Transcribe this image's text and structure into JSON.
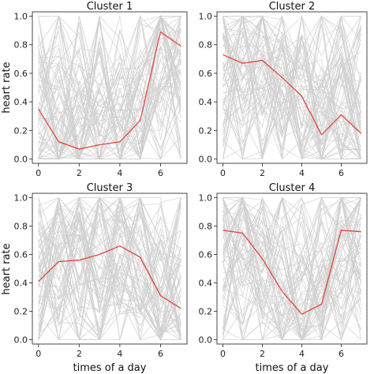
{
  "figure": {
    "ylabel": "heart rate",
    "xlabel": "times of a day"
  },
  "chart_data": [
    {
      "type": "line",
      "title": "Cluster 1",
      "x": [
        0,
        1,
        2,
        3,
        4,
        5,
        6,
        7
      ],
      "series": [
        {
          "values": [
            0.35,
            0.12,
            0.07,
            0.1,
            0.12,
            0.27,
            0.89,
            0.79
          ],
          "color": "#e0483b"
        }
      ],
      "xlim": [
        -0.3,
        7.3
      ],
      "ylim": [
        -0.03,
        1.03
      ],
      "xticks": [
        "0",
        "2",
        "4",
        "6"
      ],
      "yticks": [
        "0.0",
        "0.2",
        "0.4",
        "0.6",
        "0.8",
        "1.0"
      ],
      "xlabel": "",
      "ylabel": "heart rate",
      "grid": false,
      "background_color": "#d0d0d0"
    },
    {
      "type": "line",
      "title": "Cluster 2",
      "x": [
        0,
        1,
        2,
        3,
        4,
        5,
        6,
        7
      ],
      "series": [
        {
          "values": [
            0.73,
            0.67,
            0.69,
            0.57,
            0.44,
            0.17,
            0.31,
            0.18
          ],
          "color": "#e0483b"
        }
      ],
      "xlim": [
        -0.3,
        7.3
      ],
      "ylim": [
        -0.03,
        1.03
      ],
      "xticks": [
        "0",
        "2",
        "4",
        "6"
      ],
      "yticks": [
        "0.0",
        "0.2",
        "0.4",
        "0.6",
        "0.8",
        "1.0"
      ],
      "xlabel": "",
      "ylabel": "",
      "grid": false,
      "background_color": "#d0d0d0"
    },
    {
      "type": "line",
      "title": "Cluster 3",
      "x": [
        0,
        1,
        2,
        3,
        4,
        5,
        6,
        7
      ],
      "series": [
        {
          "values": [
            0.41,
            0.55,
            0.56,
            0.6,
            0.66,
            0.58,
            0.31,
            0.22
          ],
          "color": "#e0483b"
        }
      ],
      "xlim": [
        -0.3,
        7.3
      ],
      "ylim": [
        -0.03,
        1.03
      ],
      "xticks": [
        "0",
        "2",
        "4",
        "6"
      ],
      "yticks": [
        "0.0",
        "0.2",
        "0.4",
        "0.6",
        "0.8",
        "1.0"
      ],
      "xlabel": "times of a day",
      "ylabel": "heart rate",
      "grid": false,
      "background_color": "#d0d0d0"
    },
    {
      "type": "line",
      "title": "Cluster 4",
      "x": [
        0,
        1,
        2,
        3,
        4,
        5,
        6,
        7
      ],
      "series": [
        {
          "values": [
            0.77,
            0.75,
            0.57,
            0.34,
            0.18,
            0.25,
            0.77,
            0.76
          ],
          "color": "#e0483b"
        }
      ],
      "xlim": [
        -0.3,
        7.3
      ],
      "ylim": [
        -0.03,
        1.03
      ],
      "xticks": [
        "0",
        "2",
        "4",
        "6"
      ],
      "yticks": [
        "0.0",
        "0.2",
        "0.4",
        "0.6",
        "0.8",
        "1.0"
      ],
      "xlabel": "times of a day",
      "ylabel": "",
      "grid": false,
      "background_color": "#d0d0d0"
    }
  ]
}
